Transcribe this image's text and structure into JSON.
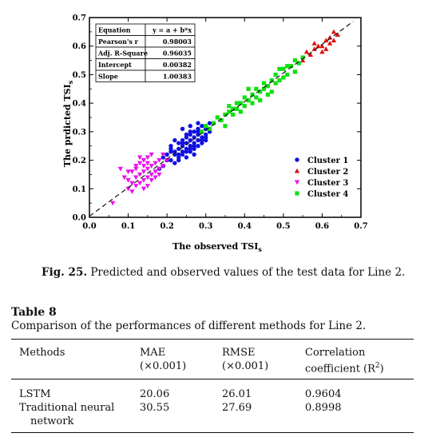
{
  "chart_data": {
    "type": "scatter",
    "xlabel_main": "The observed TSI",
    "xlabel_sub": "s",
    "ylabel_main": "The prdicted TSI",
    "ylabel_sub": "s",
    "xlim": [
      0.0,
      0.7
    ],
    "ylim": [
      0.0,
      0.7
    ],
    "xticks": [
      "0.0",
      "0.1",
      "0.2",
      "0.3",
      "0.4",
      "0.5",
      "0.6",
      "0.7"
    ],
    "yticks": [
      "0.0",
      "0.1",
      "0.2",
      "0.3",
      "0.4",
      "0.5",
      "0.6",
      "0.7"
    ],
    "fit_line": {
      "intercept": 0.00382,
      "slope": 1.00383,
      "style": "dashed"
    },
    "stats_table": [
      [
        "Equation",
        "y = a + b*x"
      ],
      [
        "Pearson's r",
        "0.98003"
      ],
      [
        "Adj. R-Square",
        "0.96035"
      ],
      [
        "Intercept",
        "0.00382"
      ],
      [
        "Slope",
        "1.00383"
      ]
    ],
    "legend_placement": "bottom-right",
    "series": [
      {
        "name": "Cluster 1",
        "color": "#1010e0",
        "marker": "circle",
        "x": [
          0.19,
          0.2,
          0.21,
          0.21,
          0.22,
          0.22,
          0.23,
          0.23,
          0.23,
          0.24,
          0.24,
          0.24,
          0.25,
          0.25,
          0.25,
          0.25,
          0.26,
          0.26,
          0.26,
          0.26,
          0.27,
          0.27,
          0.27,
          0.27,
          0.28,
          0.28,
          0.28,
          0.28,
          0.29,
          0.29,
          0.29,
          0.3,
          0.3,
          0.3,
          0.31,
          0.31,
          0.2,
          0.22,
          0.24,
          0.26,
          0.28,
          0.3,
          0.21,
          0.23,
          0.25,
          0.27,
          0.29,
          0.18,
          0.19,
          0.24,
          0.26,
          0.28,
          0.22,
          0.25,
          0.27,
          0.23,
          0.29,
          0.21,
          0.24,
          0.26
        ],
        "y": [
          0.18,
          0.22,
          0.2,
          0.24,
          0.23,
          0.19,
          0.21,
          0.26,
          0.24,
          0.22,
          0.27,
          0.25,
          0.23,
          0.28,
          0.26,
          0.21,
          0.25,
          0.29,
          0.27,
          0.23,
          0.26,
          0.3,
          0.28,
          0.24,
          0.27,
          0.31,
          0.29,
          0.25,
          0.28,
          0.32,
          0.26,
          0.29,
          0.31,
          0.27,
          0.3,
          0.33,
          0.2,
          0.22,
          0.23,
          0.24,
          0.3,
          0.28,
          0.25,
          0.2,
          0.29,
          0.22,
          0.3,
          0.17,
          0.21,
          0.31,
          0.32,
          0.33,
          0.27,
          0.24,
          0.25,
          0.22,
          0.27,
          0.23,
          0.26,
          0.3
        ]
      },
      {
        "name": "Cluster 2",
        "color": "#e01010",
        "marker": "triangle-up",
        "x": [
          0.55,
          0.56,
          0.57,
          0.58,
          0.58,
          0.59,
          0.6,
          0.61,
          0.61,
          0.62,
          0.63,
          0.63,
          0.64,
          0.62,
          0.6
        ],
        "y": [
          0.55,
          0.58,
          0.57,
          0.59,
          0.61,
          0.6,
          0.6,
          0.62,
          0.59,
          0.63,
          0.62,
          0.65,
          0.64,
          0.61,
          0.58
        ]
      },
      {
        "name": "Cluster 3",
        "color": "#ee10ee",
        "marker": "triangle-down",
        "x": [
          0.06,
          0.08,
          0.09,
          0.1,
          0.1,
          0.11,
          0.11,
          0.12,
          0.12,
          0.12,
          0.13,
          0.13,
          0.13,
          0.14,
          0.14,
          0.14,
          0.15,
          0.15,
          0.15,
          0.16,
          0.16,
          0.16,
          0.17,
          0.17,
          0.18,
          0.18,
          0.19,
          0.19,
          0.2,
          0.11,
          0.13,
          0.15,
          0.17,
          0.12,
          0.14,
          0.16,
          0.1,
          0.18,
          0.14,
          0.15
        ],
        "y": [
          0.05,
          0.17,
          0.14,
          0.1,
          0.13,
          0.12,
          0.16,
          0.14,
          0.18,
          0.11,
          0.15,
          0.19,
          0.12,
          0.16,
          0.13,
          0.2,
          0.14,
          0.17,
          0.21,
          0.15,
          0.18,
          0.22,
          0.16,
          0.19,
          0.17,
          0.2,
          0.18,
          0.22,
          0.2,
          0.09,
          0.21,
          0.11,
          0.14,
          0.17,
          0.1,
          0.13,
          0.16,
          0.15,
          0.18,
          0.19
        ]
      },
      {
        "name": "Cluster 4",
        "color": "#10e010",
        "marker": "square",
        "x": [
          0.29,
          0.3,
          0.31,
          0.32,
          0.33,
          0.34,
          0.35,
          0.36,
          0.36,
          0.37,
          0.38,
          0.38,
          0.39,
          0.4,
          0.4,
          0.41,
          0.42,
          0.43,
          0.43,
          0.44,
          0.44,
          0.45,
          0.46,
          0.47,
          0.48,
          0.48,
          0.49,
          0.5,
          0.5,
          0.51,
          0.52,
          0.53,
          0.54,
          0.35,
          0.37,
          0.39,
          0.41,
          0.45,
          0.47,
          0.49,
          0.51,
          0.53,
          0.42,
          0.46,
          0.55
        ],
        "y": [
          0.3,
          0.32,
          0.31,
          0.33,
          0.35,
          0.34,
          0.36,
          0.37,
          0.39,
          0.36,
          0.38,
          0.4,
          0.37,
          0.39,
          0.42,
          0.41,
          0.43,
          0.42,
          0.45,
          0.44,
          0.41,
          0.45,
          0.46,
          0.44,
          0.47,
          0.5,
          0.48,
          0.49,
          0.52,
          0.5,
          0.53,
          0.51,
          0.54,
          0.32,
          0.38,
          0.4,
          0.45,
          0.47,
          0.48,
          0.52,
          0.53,
          0.55,
          0.4,
          0.43,
          0.56
        ]
      }
    ]
  },
  "figure": {
    "caption_label": "Fig. 25.",
    "caption_text": "Predicted and observed values of the test data for Line 2."
  },
  "table": {
    "label": "Table 8",
    "title": "Comparison of the performances of different methods for Line 2.",
    "headers": [
      {
        "line1": "Methods",
        "line2": ""
      },
      {
        "line1": "MAE",
        "line2": "(×0.001)"
      },
      {
        "line1": "RMSE",
        "line2": "(×0.001)"
      },
      {
        "line1": "Correlation",
        "line2": "coefficient (R",
        "sup": "2",
        "line2_end": ")"
      }
    ],
    "rows": [
      {
        "method": "LSTM",
        "method2": "",
        "mae": "20.06",
        "rmse": "26.01",
        "corr": "0.9604"
      },
      {
        "method": "Traditional neural",
        "method2": "network",
        "mae": "30.55",
        "rmse": "27.69",
        "corr": "0.8998"
      }
    ]
  }
}
